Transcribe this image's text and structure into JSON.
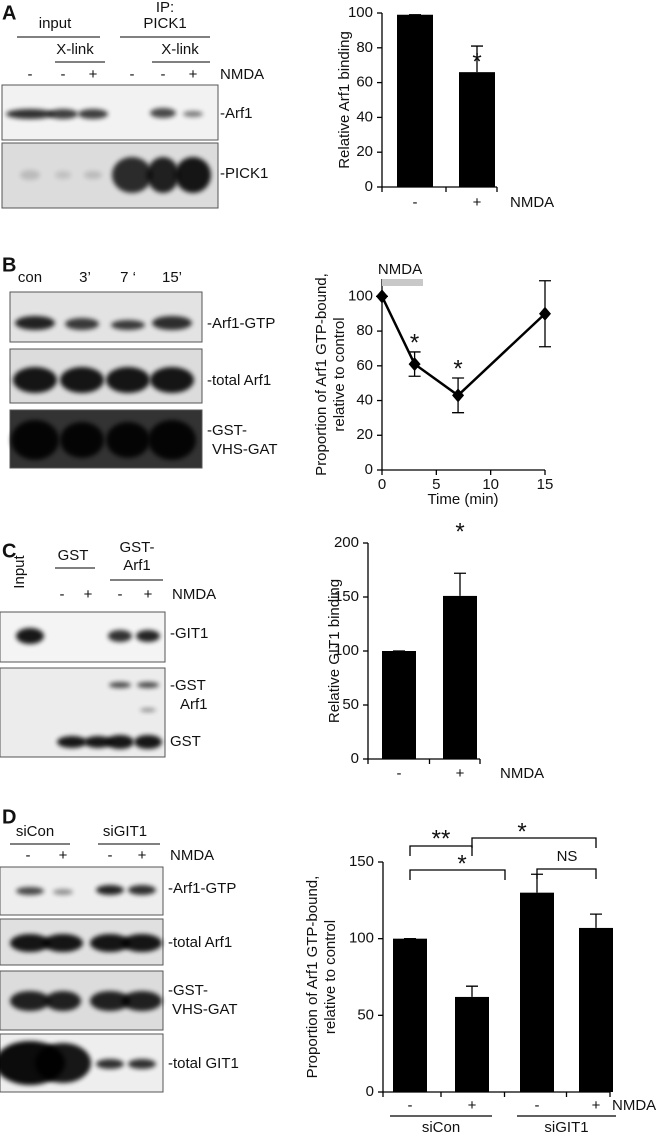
{
  "panel_labels": [
    "A",
    "B",
    "C",
    "D"
  ],
  "blots": [
    {
      "headers": [
        "input",
        "IP:",
        "PICK1",
        "X-link",
        "X-link"
      ],
      "lanes": [
        "-",
        "-",
        "+",
        "-",
        "-",
        "+"
      ],
      "treatment": "NMDA",
      "bands": [
        "-Arf1",
        "-PICK1"
      ]
    },
    {
      "headers": [
        "con",
        "3’",
        "7 ‘",
        "15’"
      ],
      "bands": [
        "-Arf1-GTP",
        "-total Arf1",
        "-GST-",
        "VHS-GAT"
      ]
    },
    {
      "headers": [
        "Input",
        "GST",
        "GST-",
        "Arf1"
      ],
      "lanes": [
        "-",
        "+",
        "-",
        "+"
      ],
      "treatment": "NMDA",
      "bands": [
        "-GIT1",
        "-GST",
        "Arf1",
        "GST"
      ]
    },
    {
      "headers": [
        "siCon",
        "siGIT1"
      ],
      "lanes": [
        "-",
        "+",
        "-",
        "+"
      ],
      "treatment": "NMDA",
      "bands": [
        "-Arf1-GTP",
        "-total Arf1",
        "-GST-",
        "VHS-GAT",
        "-total GIT1"
      ]
    }
  ],
  "chart_data": [
    {
      "type": "bar",
      "ylabel": [
        "Relative Arf1 binding"
      ],
      "categories": [
        "-",
        "+"
      ],
      "values": [
        99,
        66
      ],
      "errors": [
        0,
        15
      ],
      "color": "#000000",
      "ylim": [
        0,
        100
      ],
      "yticks": [
        0,
        20,
        40,
        60,
        80,
        100
      ],
      "xlabel": "NMDA",
      "annotations": [
        "*"
      ]
    },
    {
      "type": "line",
      "ylabel": [
        "Proportion of Arf1 GTP-bound,",
        "relative to control"
      ],
      "xlabel": "Time (min)",
      "x": [
        0,
        3,
        7,
        15
      ],
      "values": [
        100,
        61,
        43,
        90
      ],
      "errors": [
        0,
        7,
        10,
        19
      ],
      "color": "#000000",
      "xlim": [
        0,
        15
      ],
      "ylim": [
        0,
        110
      ],
      "xticks": [
        0,
        5,
        10,
        15
      ],
      "yticks": [
        0,
        20,
        40,
        60,
        80,
        100
      ],
      "annotations": [
        "NMDA",
        "*",
        "*"
      ]
    },
    {
      "type": "bar",
      "ylabel": [
        "Relative GIT1 binding"
      ],
      "categories": [
        "-",
        "+"
      ],
      "values": [
        100,
        151
      ],
      "errors": [
        0,
        21
      ],
      "color": "#000000",
      "ylim": [
        0,
        200
      ],
      "yticks": [
        0,
        50,
        100,
        150,
        200
      ],
      "xlabel": "NMDA",
      "annotations": [
        "*"
      ]
    },
    {
      "type": "bar",
      "ylabel": [
        "Proportion of Arf1 GTP-bound,",
        "relative to control"
      ],
      "categories": [
        "-",
        "+",
        "-",
        "+"
      ],
      "groups": [
        "siCon",
        "siGIT1"
      ],
      "values": [
        100,
        62,
        130,
        107
      ],
      "errors": [
        0,
        7,
        12,
        9
      ],
      "color": "#000000",
      "ylim": [
        0,
        150
      ],
      "yticks": [
        0,
        50,
        100,
        150
      ],
      "xlabel": "NMDA",
      "annotations": [
        "**",
        "*",
        "NS",
        "*"
      ]
    }
  ]
}
